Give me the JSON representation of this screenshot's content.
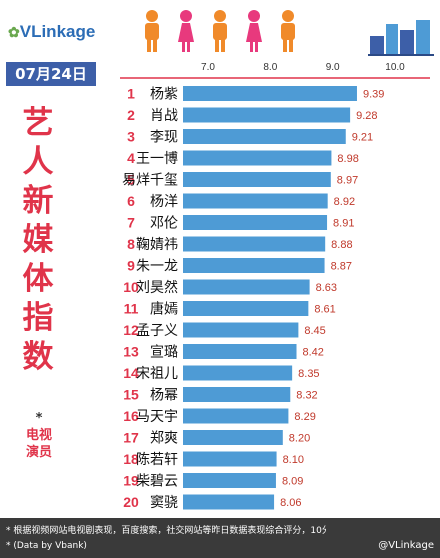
{
  "brand": {
    "name": "VLinkage"
  },
  "date": "07月24日",
  "title": {
    "main": "艺人新媒体指数",
    "star": "*",
    "sub": "电视演员"
  },
  "footer": {
    "note": "* 根据视频网站电视剧表现，百度搜索，社交网站等昨日数据表现综合评分，10分制",
    "source": "* (Data by Vbank)",
    "weibo": "@VLinkage"
  },
  "colors": {
    "bar": "#4e9bd5",
    "rank": "#e0344a",
    "value": "#c0392b",
    "header": "#3d5fa8"
  },
  "chart_data": {
    "type": "bar",
    "orientation": "horizontal",
    "xlim": [
      7.0,
      10.0
    ],
    "ticks": [
      "7.0",
      "8.0",
      "9.0",
      "10.0"
    ],
    "grid": false,
    "rows": [
      {
        "rank": "1",
        "name": "杨紫",
        "value": 9.39,
        "label": "9.39"
      },
      {
        "rank": "2",
        "name": "肖战",
        "value": 9.28,
        "label": "9.28"
      },
      {
        "rank": "3",
        "name": "李现",
        "value": 9.21,
        "label": "9.21"
      },
      {
        "rank": "4",
        "name": "王一博",
        "value": 8.98,
        "label": "8.98"
      },
      {
        "rank": "5",
        "name": "易烊千玺",
        "value": 8.97,
        "label": "8.97"
      },
      {
        "rank": "6",
        "name": "杨洋",
        "value": 8.92,
        "label": "8.92"
      },
      {
        "rank": "7",
        "name": "邓伦",
        "value": 8.91,
        "label": "8.91"
      },
      {
        "rank": "8",
        "name": "鞠婧祎",
        "value": 8.88,
        "label": "8.88"
      },
      {
        "rank": "9",
        "name": "朱一龙",
        "value": 8.87,
        "label": "8.87"
      },
      {
        "rank": "10",
        "name": "刘昊然",
        "value": 8.63,
        "label": "8.63"
      },
      {
        "rank": "11",
        "name": "唐嫣",
        "value": 8.61,
        "label": "8.61"
      },
      {
        "rank": "12",
        "name": "孟子义",
        "value": 8.45,
        "label": "8.45"
      },
      {
        "rank": "13",
        "name": "宣璐",
        "value": 8.42,
        "label": "8.42"
      },
      {
        "rank": "14",
        "name": "宋祖儿",
        "value": 8.35,
        "label": "8.35"
      },
      {
        "rank": "15",
        "name": "杨幂",
        "value": 8.32,
        "label": "8.32"
      },
      {
        "rank": "16",
        "name": "马天宇",
        "value": 8.29,
        "label": "8.29"
      },
      {
        "rank": "17",
        "name": "郑爽",
        "value": 8.2,
        "label": "8.20"
      },
      {
        "rank": "18",
        "name": "陈若轩",
        "value": 8.1,
        "label": "8.10"
      },
      {
        "rank": "19",
        "name": "柴碧云",
        "value": 8.09,
        "label": "8.09"
      },
      {
        "rank": "20",
        "name": "窦骁",
        "value": 8.06,
        "label": "8.06"
      }
    ]
  }
}
